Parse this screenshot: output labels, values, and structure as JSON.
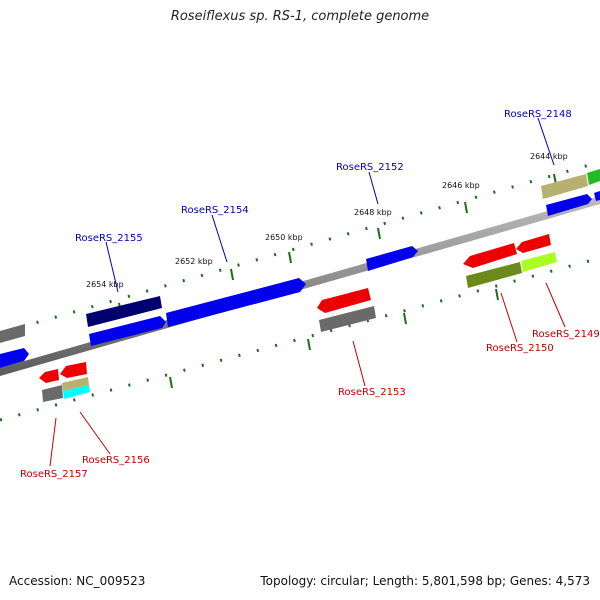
{
  "title": "Roseiflexus sp. RS-1, complete genome",
  "footer": {
    "accession": "Accession: NC_009523",
    "summary": "Topology: circular; Length: 5,801,598 bp; Genes: 4,573"
  },
  "scale_labels": [
    "2644 kbp",
    "2646 kbp",
    "2648 kbp",
    "2650 kbp",
    "2652 kbp",
    "2654 kbp"
  ],
  "gene_labels_top": [
    "RoseRS_2148",
    "RoseRS_2152",
    "RoseRS_2154",
    "RoseRS_2155"
  ],
  "gene_labels_bottom": [
    "RoseRS_2149",
    "RoseRS_2150",
    "RoseRS_2153",
    "RoseRS_2156",
    "RoseRS_2157"
  ],
  "colors": {
    "forward_genes": "#0000ee",
    "reverse_genes": "#ee0000",
    "backbone": "#888888",
    "ticks": "#1a6e1a",
    "label_top": "#0000b0",
    "label_bottom": "#c00000"
  }
}
